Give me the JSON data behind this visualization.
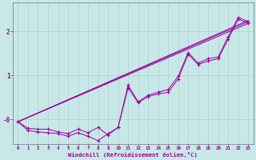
{
  "xlabel": "Windchill (Refroidissement éolien,°C)",
  "ylabel": "",
  "xlim": [
    -0.5,
    23.5
  ],
  "ylim": [
    -0.55,
    2.65
  ],
  "xticks": [
    0,
    1,
    2,
    3,
    4,
    5,
    6,
    7,
    8,
    9,
    10,
    11,
    12,
    13,
    14,
    15,
    16,
    17,
    18,
    19,
    20,
    21,
    22,
    23
  ],
  "yticks": [
    0.0,
    1.0,
    2.0
  ],
  "ytick_labels": [
    "-0",
    "1",
    "2"
  ],
  "bg_color": "#c8e8e8",
  "line_color": "#990099",
  "grid_color": "#aacccc",
  "line1_x": [
    0,
    1,
    2,
    3,
    4,
    5,
    6,
    7,
    8,
    9,
    10,
    11,
    12,
    13,
    14,
    15,
    16,
    17,
    18,
    19,
    20,
    21,
    22,
    23
  ],
  "line1_y": [
    -0.05,
    -0.2,
    -0.22,
    -0.22,
    -0.28,
    -0.32,
    -0.22,
    -0.3,
    -0.18,
    -0.35,
    -0.18,
    0.78,
    0.4,
    0.55,
    0.62,
    0.68,
    0.98,
    1.52,
    1.28,
    1.38,
    1.42,
    1.88,
    2.32,
    2.22
  ],
  "line2_x": [
    0,
    1,
    2,
    3,
    4,
    5,
    6,
    7,
    8,
    9,
    10,
    11,
    12,
    13,
    14,
    15,
    16,
    17,
    18,
    19,
    20,
    21,
    22,
    23
  ],
  "line2_y": [
    -0.05,
    -0.25,
    -0.28,
    -0.3,
    -0.32,
    -0.38,
    -0.3,
    -0.38,
    -0.48,
    -0.32,
    -0.18,
    0.72,
    0.38,
    0.52,
    0.58,
    0.62,
    0.92,
    1.48,
    1.25,
    1.33,
    1.38,
    1.83,
    2.28,
    2.18
  ],
  "trend1_x": [
    0,
    23
  ],
  "trend1_y": [
    -0.05,
    2.22
  ],
  "trend2_x": [
    0,
    23
  ],
  "trend2_y": [
    -0.05,
    2.18
  ],
  "trend3_x": [
    0,
    23
  ],
  "trend3_y": [
    -0.05,
    2.25
  ]
}
